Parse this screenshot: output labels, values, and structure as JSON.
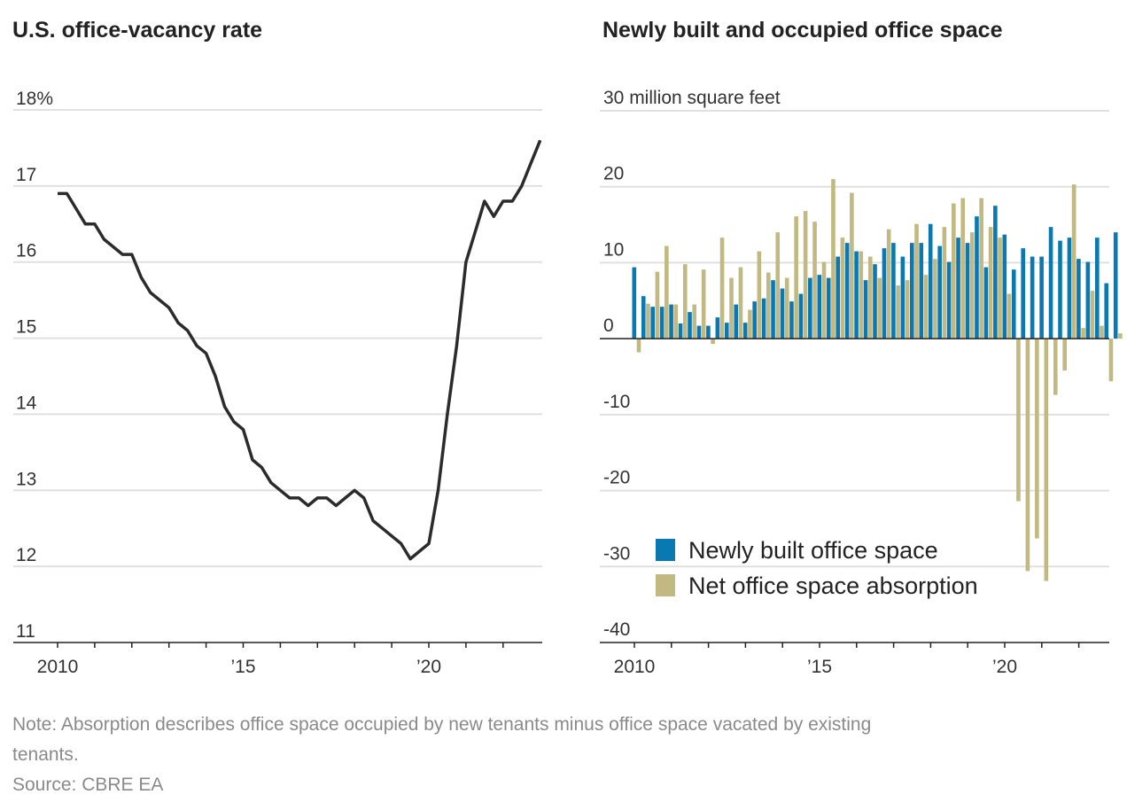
{
  "colors": {
    "line": "#2b2b2b",
    "newly_built": "#0a79b2",
    "absorption": "#c2b882",
    "grid": "#e0e0e0",
    "axis": "#222222"
  },
  "notes": {
    "note": "Note: Absorption describes office space occupied by new tenants minus office space vacated by existing",
    "note_cont": "tenants.",
    "source": "Source: CBRE EA"
  },
  "chart_data": [
    {
      "type": "line",
      "title": "U.S. office-vacancy rate",
      "xlabel": "",
      "ylabel": "",
      "ylim": [
        11,
        18
      ],
      "yticks": [
        {
          "v": 18,
          "label": "18%"
        },
        {
          "v": 17,
          "label": "17"
        },
        {
          "v": 16,
          "label": "16"
        },
        {
          "v": 15,
          "label": "15"
        },
        {
          "v": 14,
          "label": "14"
        },
        {
          "v": 13,
          "label": "13"
        },
        {
          "v": 12,
          "label": "12"
        },
        {
          "v": 11,
          "label": "11"
        }
      ],
      "xticks": [
        {
          "v": 2010,
          "label": "2010"
        },
        {
          "v": 2015,
          "label": "’15"
        },
        {
          "v": 2020,
          "label": "’20"
        }
      ],
      "xlim": [
        2010,
        2023
      ],
      "x_start": 2010,
      "step": 0.25,
      "values": [
        16.9,
        16.9,
        16.7,
        16.5,
        16.5,
        16.3,
        16.2,
        16.1,
        16.1,
        15.8,
        15.6,
        15.5,
        15.4,
        15.2,
        15.1,
        14.9,
        14.8,
        14.5,
        14.1,
        13.9,
        13.8,
        13.4,
        13.3,
        13.1,
        13.0,
        12.9,
        12.9,
        12.8,
        12.9,
        12.9,
        12.8,
        12.9,
        13.0,
        12.9,
        12.6,
        12.5,
        12.4,
        12.3,
        12.1,
        12.2,
        12.3,
        13.0,
        14.0,
        14.9,
        16.0,
        16.4,
        16.8,
        16.6,
        16.8,
        16.8,
        17.0,
        17.3,
        17.6
      ]
    },
    {
      "type": "bar",
      "title": "Newly built and occupied office space",
      "ylabel": "30 million square feet",
      "ylim": [
        -40,
        30
      ],
      "yticks": [
        {
          "v": 30,
          "label": "30 million square feet"
        },
        {
          "v": 20,
          "label": "20"
        },
        {
          "v": 10,
          "label": "10"
        },
        {
          "v": 0,
          "label": "0"
        },
        {
          "v": -10,
          "label": "-10"
        },
        {
          "v": -20,
          "label": "-20"
        },
        {
          "v": -30,
          "label": "-30"
        },
        {
          "v": -40,
          "label": "-40"
        }
      ],
      "xticks": [
        {
          "v": 2010,
          "label": "2010"
        },
        {
          "v": 2015,
          "label": "’15"
        },
        {
          "v": 2020,
          "label": "’20"
        }
      ],
      "xlim": [
        2010,
        2023
      ],
      "x_start": 2010,
      "step": 0.25,
      "legend": "bottom-left",
      "series": [
        {
          "name": "Newly built office space",
          "values": [
            9.4,
            5.6,
            4.2,
            4.2,
            4.5,
            2.0,
            3.5,
            1.7,
            1.7,
            2.8,
            2.1,
            4.5,
            2.1,
            4.9,
            5.3,
            7.7,
            6.6,
            4.9,
            5.9,
            8.0,
            8.4,
            8.0,
            10.8,
            12.6,
            11.5,
            7.7,
            9.8,
            11.9,
            12.6,
            10.8,
            12.6,
            12.6,
            15.1,
            12.2,
            10.1,
            13.3,
            12.6,
            16.1,
            9.4,
            17.5,
            13.7,
            9.1,
            11.9,
            10.8,
            10.8,
            14.7,
            12.9,
            13.3,
            10.5,
            10.1,
            13.3,
            7.3,
            14.0
          ]
        },
        {
          "name": "Net office space absorption",
          "values": [
            -1.8,
            4.6,
            8.8,
            12.2,
            4.5,
            9.8,
            4.5,
            9.1,
            -0.7,
            13.3,
            8.0,
            9.4,
            3.8,
            11.5,
            8.7,
            14.0,
            8.0,
            16.1,
            16.8,
            15.4,
            10.1,
            21.0,
            13.3,
            19.2,
            11.5,
            10.8,
            8.0,
            14.4,
            7.0,
            7.7,
            15.1,
            8.4,
            10.5,
            14.7,
            17.8,
            18.5,
            14.0,
            18.5,
            14.7,
            13.3,
            5.9,
            -21.4,
            -30.6,
            -26.3,
            -31.9,
            -7.4,
            -4.2,
            20.3,
            1.4,
            6.3,
            1.7,
            -5.6,
            0.7
          ]
        }
      ]
    }
  ]
}
